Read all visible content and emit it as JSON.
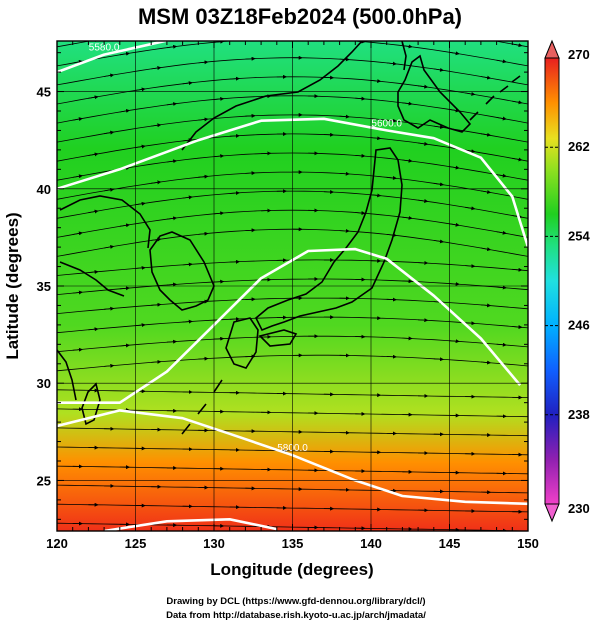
{
  "title": "MSM 03Z18Feb2024 (500.0hPa)",
  "axes": {
    "xlabel": "Longitude (degrees)",
    "ylabel": "Latitude  (degrees)",
    "x_ticks": [
      "120",
      "125",
      "130",
      "135",
      "140",
      "145",
      "150"
    ],
    "y_ticks": [
      "25",
      "30",
      "35",
      "40",
      "45"
    ],
    "xlim": [
      120,
      150
    ],
    "ylim": [
      22.4,
      47.6
    ]
  },
  "colorbar": {
    "ticks": [
      "270",
      "262",
      "254",
      "246",
      "238",
      "230"
    ],
    "range": [
      230,
      270
    ],
    "colormap": [
      "#f040c8",
      "#9020b0",
      "#2020c0",
      "#1060ff",
      "#00b0ff",
      "#20e0e0",
      "#20e080",
      "#20d020",
      "#90e020",
      "#e8e020",
      "#ff9000",
      "#f03018",
      "#e82020"
    ]
  },
  "contours": [
    {
      "label": "5580.0",
      "points": [
        [
          120,
          46.0
        ],
        [
          123,
          46.9
        ],
        [
          128,
          47.8
        ]
      ]
    },
    {
      "label": "5600.0",
      "points": [
        [
          120,
          40.0
        ],
        [
          124,
          41.0
        ],
        [
          129,
          42.5
        ],
        [
          133,
          43.5
        ],
        [
          137,
          43.6
        ],
        [
          141,
          43.0
        ],
        [
          144,
          42.6
        ],
        [
          147,
          41.6
        ],
        [
          149,
          39.6
        ],
        [
          150,
          37.0
        ]
      ]
    },
    {
      "label": "",
      "points": [
        [
          120,
          29.0
        ],
        [
          124,
          29.0
        ],
        [
          127,
          30.6
        ],
        [
          130,
          33.0
        ],
        [
          133,
          35.4
        ],
        [
          136,
          36.8
        ],
        [
          139,
          36.9
        ],
        [
          141,
          36.4
        ],
        [
          144,
          34.5
        ],
        [
          147,
          32.3
        ],
        [
          149.5,
          29.9
        ]
      ]
    },
    {
      "label": "5800.0",
      "points": [
        [
          120,
          27.8
        ],
        [
          124,
          28.6
        ],
        [
          128,
          28.2
        ],
        [
          131,
          27.4
        ],
        [
          135,
          26.3
        ],
        [
          139,
          25.0
        ],
        [
          142,
          24.2
        ],
        [
          146,
          23.9
        ],
        [
          150,
          23.8
        ]
      ]
    },
    {
      "label": "",
      "points": [
        [
          123,
          22.4
        ],
        [
          127,
          22.9
        ],
        [
          131,
          23.0
        ],
        [
          134,
          22.5
        ]
      ]
    }
  ],
  "field": {
    "temperature_min": 230,
    "temperature_max": 270,
    "gradient_stops": [
      {
        "lat": 47.6,
        "value": 251,
        "color": "#20e080"
      },
      {
        "lat": 42.0,
        "value": 254,
        "color": "#20d020"
      },
      {
        "lat": 33.0,
        "value": 256,
        "color": "#50d820"
      },
      {
        "lat": 28.5,
        "value": 258,
        "color": "#b0e020"
      },
      {
        "lat": 26.0,
        "value": 262,
        "color": "#ff9000"
      },
      {
        "lat": 22.4,
        "value": 266,
        "color": "#f03018"
      }
    ]
  },
  "credits": {
    "line1": "Drawing by DCL (https://www.gfd-dennou.org/library/dcl/)",
    "line2": "Data from http://database.rish.kyoto-u.ac.jp/arch/jmadata/"
  }
}
